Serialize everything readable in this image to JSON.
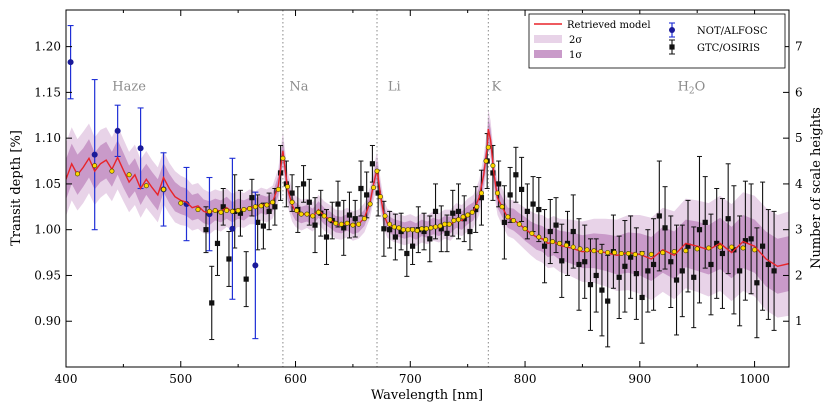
{
  "chart_data": {
    "type": "line",
    "xlabel": "Wavelength [nm]",
    "ylabel": "Transit depth [%]",
    "y2label": "Number of scale heights",
    "xlim": [
      400,
      1030
    ],
    "ylim": [
      0.85,
      1.24
    ],
    "y2lim": [
      0,
      7.8
    ],
    "xticks": [
      400,
      500,
      600,
      700,
      800,
      900,
      1000
    ],
    "yticks": [
      0.9,
      0.95,
      1.0,
      1.05,
      1.1,
      1.15,
      1.2
    ],
    "y2ticks": [
      1,
      2,
      3,
      4,
      5,
      6,
      7
    ],
    "vlines": [
      589,
      671,
      768
    ],
    "region_labels": [
      {
        "text": "Haze",
        "x": 455,
        "y": 1.152
      },
      {
        "text": "Na",
        "x": 603,
        "y": 1.152
      },
      {
        "text": "Li",
        "x": 686,
        "y": 1.152
      },
      {
        "text": "K",
        "x": 775,
        "y": 1.152
      },
      {
        "text": "H",
        "sub": "2",
        "tail": "O",
        "x": 945,
        "y": 1.152
      }
    ],
    "legend": {
      "model": "Retrieved model",
      "sigma2": "2σ",
      "sigma1": "1σ",
      "not": "NOT/ALFOSC",
      "gtc": "GTC/OSIRIS",
      "placement": "top-right"
    },
    "colors": {
      "model": "#e8242a",
      "sigma1": "#c99ac9",
      "sigma2": "#e8d3e8",
      "not": "#1f2fd6",
      "not_marker": "#1a1a99",
      "gtc": "#111111",
      "binned": "#ffd700",
      "vline": "#888888"
    },
    "model": {
      "x": [
        400,
        405,
        410,
        415,
        420,
        425,
        430,
        435,
        440,
        445,
        450,
        455,
        460,
        465,
        470,
        475,
        480,
        485,
        490,
        495,
        500,
        505,
        510,
        515,
        520,
        525,
        530,
        535,
        540,
        545,
        550,
        555,
        560,
        565,
        570,
        575,
        580,
        585,
        589,
        593,
        597,
        600,
        605,
        610,
        615,
        620,
        625,
        630,
        635,
        640,
        645,
        650,
        655,
        660,
        665,
        668,
        671,
        674,
        677,
        680,
        685,
        690,
        695,
        700,
        705,
        710,
        715,
        720,
        725,
        730,
        735,
        740,
        745,
        750,
        755,
        760,
        764,
        767,
        768,
        770,
        773,
        776,
        780,
        785,
        790,
        795,
        800,
        805,
        810,
        815,
        820,
        825,
        830,
        840,
        850,
        860,
        870,
        880,
        890,
        900,
        910,
        920,
        930,
        940,
        950,
        960,
        970,
        980,
        990,
        1000,
        1010,
        1020,
        1030
      ],
      "y": [
        1.055,
        1.072,
        1.06,
        1.068,
        1.078,
        1.064,
        1.072,
        1.076,
        1.066,
        1.079,
        1.065,
        1.052,
        1.06,
        1.045,
        1.055,
        1.046,
        1.038,
        1.057,
        1.045,
        1.036,
        1.032,
        1.03,
        1.024,
        1.026,
        1.02,
        1.018,
        1.022,
        1.02,
        1.024,
        1.019,
        1.023,
        1.021,
        1.025,
        1.024,
        1.028,
        1.026,
        1.03,
        1.048,
        1.086,
        1.045,
        1.027,
        1.02,
        1.016,
        1.018,
        1.014,
        1.022,
        1.015,
        1.011,
        1.006,
        1.005,
        1.008,
        1.004,
        1.006,
        1.013,
        1.03,
        1.05,
        1.066,
        1.038,
        1.016,
        1.007,
        1.003,
        1.001,
        0.999,
        1.001,
        0.998,
        1.002,
        1.0,
        1.004,
        1.002,
        1.006,
        1.005,
        1.012,
        1.01,
        1.016,
        1.02,
        1.035,
        1.06,
        1.09,
        1.11,
        1.098,
        1.06,
        1.035,
        1.025,
        1.013,
        1.011,
        1.006,
        1.001,
        0.996,
        0.992,
        0.99,
        0.985,
        0.987,
        0.983,
        0.98,
        0.976,
        0.977,
        0.975,
        0.972,
        0.975,
        0.973,
        0.968,
        0.978,
        0.972,
        0.985,
        0.982,
        0.978,
        0.985,
        0.975,
        0.987,
        0.982,
        0.968,
        0.96,
        0.963
      ],
      "sigma1": [
        0.022,
        0.022,
        0.022,
        0.021,
        0.021,
        0.02,
        0.02,
        0.02,
        0.019,
        0.019,
        0.019,
        0.018,
        0.018,
        0.018,
        0.017,
        0.017,
        0.017,
        0.016,
        0.016,
        0.016,
        0.015,
        0.015,
        0.014,
        0.014,
        0.013,
        0.013,
        0.012,
        0.012,
        0.012,
        0.011,
        0.011,
        0.011,
        0.01,
        0.01,
        0.01,
        0.01,
        0.01,
        0.011,
        0.012,
        0.011,
        0.01,
        0.01,
        0.009,
        0.009,
        0.009,
        0.009,
        0.009,
        0.009,
        0.009,
        0.009,
        0.009,
        0.009,
        0.009,
        0.009,
        0.01,
        0.01,
        0.011,
        0.01,
        0.009,
        0.009,
        0.009,
        0.009,
        0.009,
        0.009,
        0.009,
        0.009,
        0.009,
        0.009,
        0.009,
        0.009,
        0.009,
        0.01,
        0.01,
        0.01,
        0.01,
        0.011,
        0.011,
        0.012,
        0.012,
        0.012,
        0.011,
        0.011,
        0.011,
        0.011,
        0.012,
        0.012,
        0.013,
        0.013,
        0.014,
        0.014,
        0.015,
        0.015,
        0.016,
        0.017,
        0.018,
        0.019,
        0.02,
        0.021,
        0.022,
        0.023,
        0.024,
        0.025,
        0.026,
        0.026,
        0.027,
        0.027,
        0.028,
        0.028,
        0.029,
        0.029,
        0.03,
        0.03,
        0.03
      ],
      "sigma2": [
        0.04,
        0.04,
        0.039,
        0.039,
        0.038,
        0.037,
        0.037,
        0.036,
        0.035,
        0.035,
        0.034,
        0.033,
        0.033,
        0.032,
        0.031,
        0.03,
        0.03,
        0.029,
        0.028,
        0.028,
        0.027,
        0.026,
        0.025,
        0.025,
        0.024,
        0.023,
        0.022,
        0.022,
        0.021,
        0.02,
        0.02,
        0.019,
        0.019,
        0.018,
        0.018,
        0.018,
        0.018,
        0.019,
        0.021,
        0.019,
        0.018,
        0.017,
        0.017,
        0.016,
        0.016,
        0.016,
        0.016,
        0.016,
        0.016,
        0.016,
        0.016,
        0.016,
        0.016,
        0.016,
        0.017,
        0.018,
        0.019,
        0.018,
        0.016,
        0.016,
        0.016,
        0.016,
        0.016,
        0.016,
        0.016,
        0.016,
        0.016,
        0.016,
        0.016,
        0.016,
        0.017,
        0.017,
        0.017,
        0.018,
        0.018,
        0.019,
        0.02,
        0.021,
        0.022,
        0.021,
        0.02,
        0.019,
        0.02,
        0.02,
        0.021,
        0.022,
        0.023,
        0.024,
        0.025,
        0.026,
        0.027,
        0.028,
        0.029,
        0.031,
        0.033,
        0.035,
        0.037,
        0.039,
        0.041,
        0.043,
        0.045,
        0.046,
        0.048,
        0.049,
        0.05,
        0.051,
        0.052,
        0.053,
        0.054,
        0.055,
        0.056,
        0.056,
        0.057
      ]
    },
    "binned_model": {
      "x": [
        410,
        425,
        440,
        455,
        470,
        485,
        500,
        515,
        525,
        530,
        535,
        540,
        545,
        550,
        555,
        560,
        565,
        570,
        575,
        580,
        585,
        589,
        593,
        597,
        601,
        605,
        610,
        615,
        620,
        625,
        630,
        635,
        640,
        645,
        650,
        655,
        660,
        665,
        668,
        671,
        674,
        678,
        682,
        686,
        690,
        694,
        698,
        702,
        706,
        710,
        714,
        718,
        722,
        726,
        730,
        734,
        738,
        742,
        746,
        750,
        754,
        758,
        762,
        766,
        768,
        772,
        776,
        780,
        785,
        790,
        795,
        800,
        806,
        812,
        818,
        824,
        830,
        836,
        842,
        848,
        854,
        860,
        866,
        872,
        878,
        884,
        890,
        896,
        902,
        910,
        920,
        930,
        940,
        950,
        960,
        970,
        980,
        990,
        1000
      ],
      "y": [
        1.061,
        1.07,
        1.064,
        1.06,
        1.048,
        1.044,
        1.029,
        1.022,
        1.02,
        1.021,
        1.019,
        1.021,
        1.02,
        1.021,
        1.022,
        1.023,
        1.025,
        1.026,
        1.027,
        1.03,
        1.044,
        1.078,
        1.047,
        1.03,
        1.021,
        1.017,
        1.017,
        1.015,
        1.019,
        1.015,
        1.011,
        1.007,
        1.006,
        1.007,
        1.005,
        1.006,
        1.012,
        1.028,
        1.046,
        1.064,
        1.036,
        1.015,
        1.006,
        1.003,
        1.002,
        1.0,
        1.0,
        1.0,
        0.999,
        1.001,
        1.001,
        1.002,
        1.003,
        1.004,
        1.006,
        1.006,
        1.01,
        1.011,
        1.014,
        1.016,
        1.019,
        1.025,
        1.04,
        1.075,
        1.09,
        1.07,
        1.04,
        1.025,
        1.014,
        1.01,
        1.006,
        1.001,
        0.996,
        0.992,
        0.989,
        0.987,
        0.985,
        0.983,
        0.981,
        0.979,
        0.978,
        0.977,
        0.976,
        0.975,
        0.975,
        0.974,
        0.974,
        0.973,
        0.974,
        0.973,
        0.975,
        0.976,
        0.977,
        0.979,
        0.98,
        0.981,
        0.981,
        0.98,
        0.978
      ]
    },
    "not_alfosc": {
      "x": [
        404,
        425,
        445,
        465,
        485,
        505,
        525,
        545,
        565
      ],
      "y": [
        1.183,
        1.082,
        1.108,
        1.089,
        1.044,
        1.028,
        1.017,
        1.001,
        0.961
      ],
      "err": [
        0.04,
        0.082,
        0.028,
        0.044,
        0.04,
        0.04,
        0.04,
        0.077,
        0.08
      ]
    },
    "gtc_osiris": {
      "x": [
        522,
        527,
        532,
        537,
        542,
        547,
        552,
        557,
        562,
        567,
        572,
        577,
        582,
        587,
        592,
        597,
        602,
        607,
        612,
        617,
        622,
        627,
        632,
        637,
        642,
        647,
        652,
        657,
        662,
        667,
        672,
        677,
        682,
        687,
        692,
        697,
        702,
        707,
        712,
        717,
        722,
        727,
        732,
        737,
        742,
        747,
        752,
        757,
        762,
        767,
        772,
        777,
        782,
        787,
        792,
        797,
        802,
        807,
        812,
        817,
        822,
        827,
        832,
        837,
        842,
        847,
        852,
        857,
        862,
        867,
        872,
        877,
        882,
        887,
        892,
        897,
        902,
        907,
        912,
        917,
        922,
        927,
        932,
        937,
        942,
        947,
        952,
        957,
        962,
        967,
        972,
        977,
        982,
        987,
        992,
        997,
        1002,
        1007,
        1012,
        1017
      ],
      "y": [
        1.0,
        0.92,
        0.985,
        1.025,
        0.968,
        1.02,
        1.018,
        0.946,
        1.035,
        1.008,
        1.004,
        1.02,
        1.025,
        1.062,
        1.05,
        1.04,
        1.022,
        1.05,
        1.03,
        1.005,
        1.018,
        0.992,
        1.01,
        1.028,
        1.002,
        1.016,
        1.012,
        1.045,
        1.038,
        1.072,
        1.04,
        1.001,
        1.0,
        0.992,
        0.998,
        0.974,
        0.982,
        1.0,
        0.998,
        0.99,
        1.02,
        1.001,
        0.996,
        1.018,
        1.02,
        1.012,
        0.998,
        1.022,
        1.035,
        1.075,
        1.062,
        1.05,
        1.008,
        1.038,
        1.06,
        1.044,
        1.02,
        1.028,
        1.022,
        0.982,
        0.998,
        1.005,
        0.966,
        0.985,
        0.998,
        0.962,
        0.965,
        0.94,
        0.95,
        0.934,
        0.922,
        0.976,
        0.948,
        0.96,
        0.97,
        0.952,
        0.926,
        0.955,
        0.962,
        1.015,
        1.002,
        0.965,
        0.945,
        0.955,
        0.982,
        0.948,
        1.0,
        1.008,
        0.962,
        0.985,
        0.974,
        1.012,
        0.978,
        0.955,
        0.988,
        0.99,
        0.942,
        0.982,
        0.962,
        0.955
      ],
      "err": [
        0.025,
        0.04,
        0.035,
        0.02,
        0.03,
        0.04,
        0.025,
        0.03,
        0.02,
        0.03,
        0.025,
        0.02,
        0.02,
        0.03,
        0.025,
        0.02,
        0.025,
        0.02,
        0.025,
        0.03,
        0.025,
        0.03,
        0.02,
        0.025,
        0.03,
        0.025,
        0.02,
        0.03,
        0.025,
        0.02,
        0.025,
        0.03,
        0.02,
        0.025,
        0.02,
        0.025,
        0.02,
        0.025,
        0.02,
        0.025,
        0.03,
        0.025,
        0.02,
        0.025,
        0.03,
        0.025,
        0.02,
        0.025,
        0.03,
        0.03,
        0.03,
        0.025,
        0.04,
        0.03,
        0.03,
        0.035,
        0.03,
        0.03,
        0.035,
        0.04,
        0.035,
        0.03,
        0.04,
        0.035,
        0.04,
        0.05,
        0.04,
        0.05,
        0.04,
        0.05,
        0.05,
        0.04,
        0.045,
        0.05,
        0.045,
        0.05,
        0.05,
        0.045,
        0.05,
        0.06,
        0.045,
        0.05,
        0.06,
        0.05,
        0.05,
        0.055,
        0.08,
        0.05,
        0.055,
        0.06,
        0.06,
        0.06,
        0.07,
        0.06,
        0.065,
        0.06,
        0.06,
        0.07,
        0.06,
        0.065
      ]
    }
  }
}
